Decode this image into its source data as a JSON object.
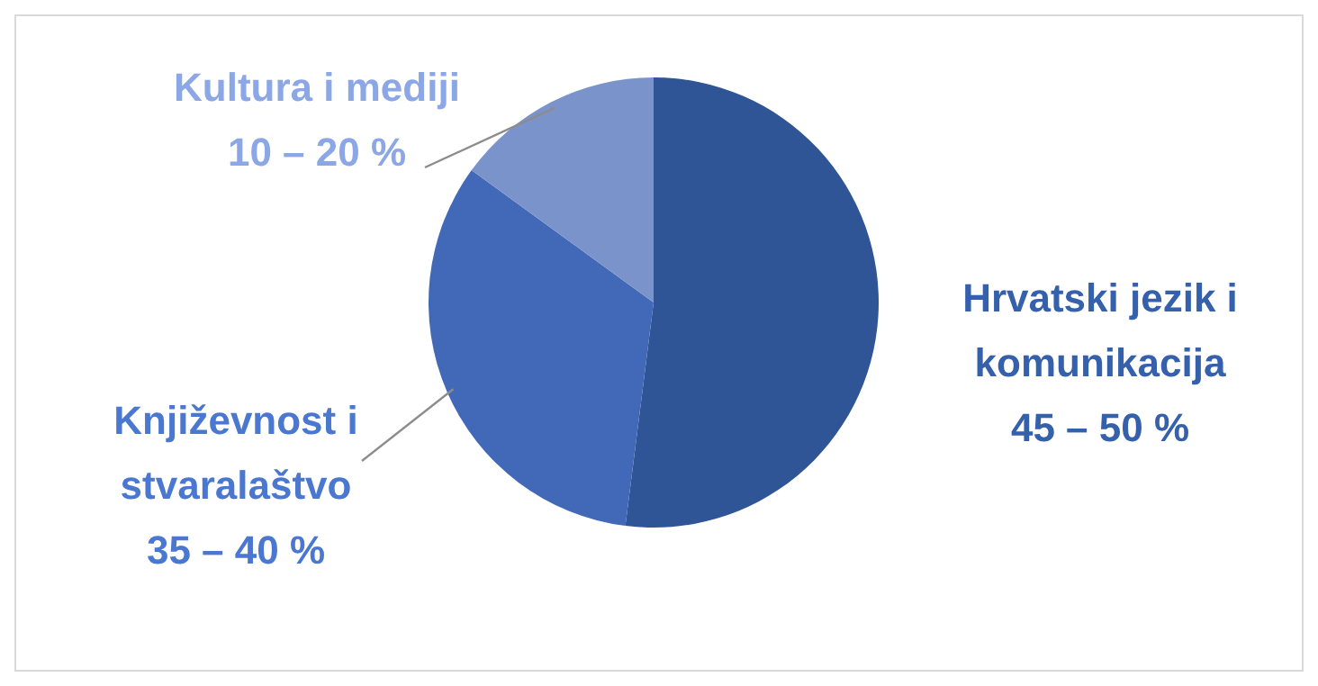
{
  "chart_data": {
    "type": "pie",
    "categories": [
      "Hrvatski jezik i komunikacija",
      "Književnost i stvaralaštvo",
      "Kultura i mediji"
    ],
    "values": [
      52,
      33,
      15
    ],
    "colors": [
      "#2f5597",
      "#4169b8",
      "#7b93cb"
    ],
    "annotations": [
      "45 – 50 %",
      "35 – 40 %",
      "10 – 20 %"
    ]
  }
}
